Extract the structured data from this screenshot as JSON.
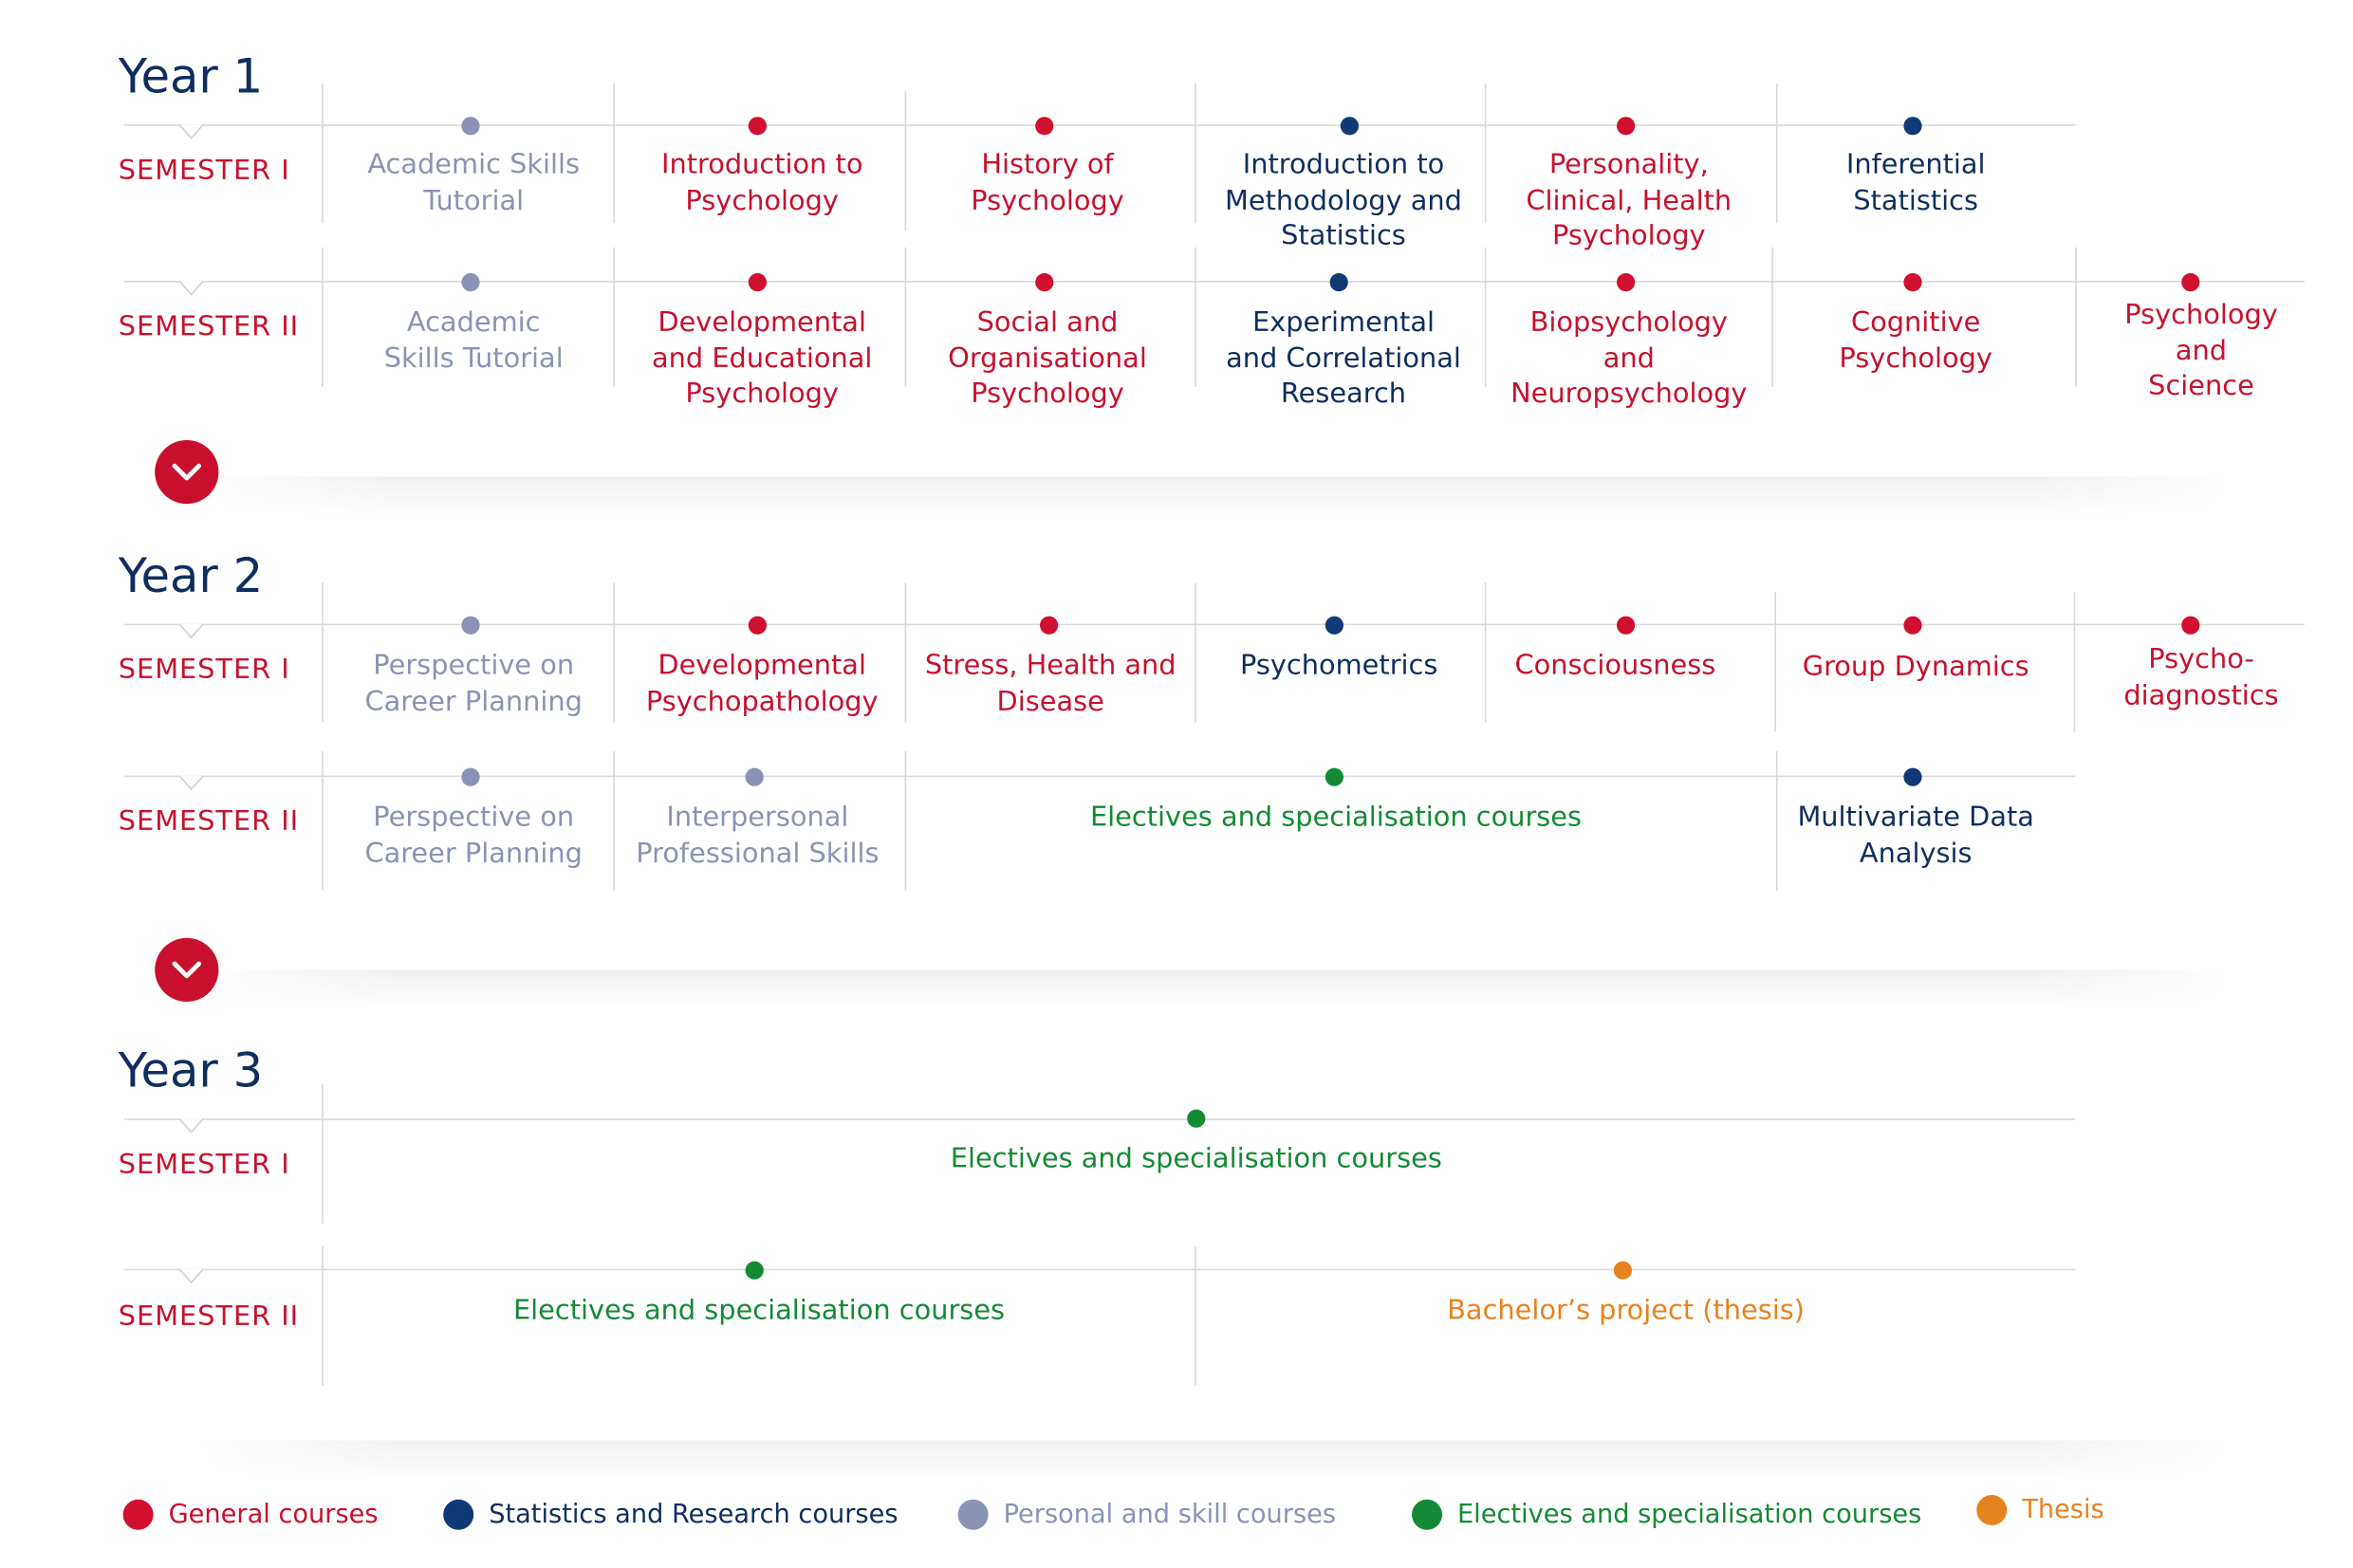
{
  "colors": {
    "general": "#d0102e",
    "stats": "#0f3a75",
    "personal": "#8a93b5",
    "electives": "#148a35",
    "thesis": "#e8821e",
    "year_title": "#0f2e5e",
    "semester_label": "#c8102e"
  },
  "years": [
    {
      "title": "Year 1",
      "semesters": [
        {
          "label": "SEMESTER I",
          "courses": [
            {
              "name": "Academic Skills\nTutorial",
              "category": "personal"
            },
            {
              "name": "Introduction to\nPsychology",
              "category": "general"
            },
            {
              "name": "History of\nPsychology",
              "category": "general"
            },
            {
              "name": "Introduction to\nMethodology and\nStatistics",
              "category": "stats"
            },
            {
              "name": "Personality,\nClinical, Health\nPsychology",
              "category": "general"
            },
            {
              "name": "Inferential\nStatistics",
              "category": "stats"
            }
          ]
        },
        {
          "label": "SEMESTER II",
          "courses": [
            {
              "name": "Academic\nSkills Tutorial",
              "category": "personal"
            },
            {
              "name": "Developmental\nand Educational\nPsychology",
              "category": "general"
            },
            {
              "name": "Social and\nOrganisational\nPsychology",
              "category": "general"
            },
            {
              "name": "Experimental\nand Correlational\nResearch",
              "category": "stats"
            },
            {
              "name": "Biopsychology\nand\nNeuropsychology",
              "category": "general"
            },
            {
              "name": "Cognitive\nPsychology",
              "category": "general"
            },
            {
              "name": "Psychology and\nScience",
              "category": "general"
            }
          ]
        }
      ]
    },
    {
      "title": "Year 2",
      "semesters": [
        {
          "label": "SEMESTER I",
          "courses": [
            {
              "name": "Perspective on\nCareer Planning",
              "category": "personal"
            },
            {
              "name": "Developmental\nPsychopathology",
              "category": "general"
            },
            {
              "name": "Stress, Health and\nDisease",
              "category": "general"
            },
            {
              "name": "Psychometrics",
              "category": "stats"
            },
            {
              "name": "Consciousness",
              "category": "general"
            },
            {
              "name": "Group Dynamics",
              "category": "general"
            },
            {
              "name": "Psycho-\ndiagnostics",
              "category": "general"
            }
          ]
        },
        {
          "label": "SEMESTER II",
          "courses": [
            {
              "name": "Perspective on\nCareer Planning",
              "category": "personal"
            },
            {
              "name": "Interpersonal\nProfessional Skills",
              "category": "personal"
            },
            {
              "name": "Electives and specialisation courses",
              "category": "electives"
            },
            {
              "name": "Multivariate Data\nAnalysis",
              "category": "stats"
            }
          ]
        }
      ]
    },
    {
      "title": "Year 3",
      "semesters": [
        {
          "label": "SEMESTER I",
          "courses": [
            {
              "name": "Electives and specialisation courses",
              "category": "electives"
            }
          ]
        },
        {
          "label": "SEMESTER II",
          "courses": [
            {
              "name": "Electives and specialisation courses",
              "category": "electives"
            },
            {
              "name": "Bachelor’s project (thesis)",
              "category": "thesis"
            }
          ]
        }
      ]
    }
  ],
  "legend": [
    {
      "label": "General courses",
      "category": "general"
    },
    {
      "label": "Statistics and Research courses",
      "category": "stats"
    },
    {
      "label": "Personal and skill courses",
      "category": "personal"
    },
    {
      "label": "Electives and specialisation courses",
      "category": "electives"
    },
    {
      "label": "Thesis",
      "category": "thesis"
    }
  ],
  "icons": {
    "expand": "chevron-down-icon"
  }
}
